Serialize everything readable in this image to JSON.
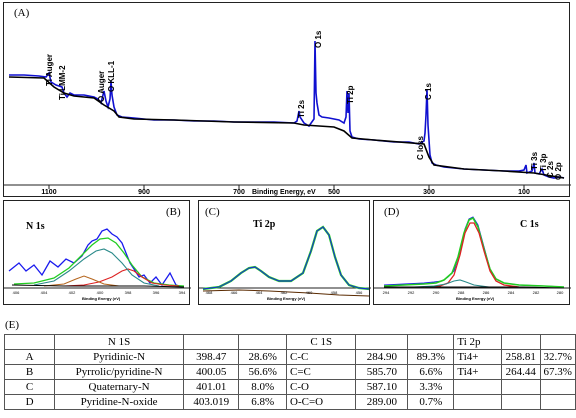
{
  "panels": {
    "a": {
      "label": "(A)",
      "xlabel": "Binding Energy, eV",
      "xticks": [
        "1100",
        "900",
        "700",
        "500",
        "300",
        "100"
      ],
      "peaks": [
        "Ti Auger",
        "Ti LMM-2",
        "O Auger",
        "O KLL-1",
        "Ti 2s",
        "O 1s",
        "Ti 2p",
        "C 1s",
        "C loss",
        "Ti 3s",
        "Ti 3p",
        "C 2s",
        "O 2p"
      ]
    },
    "b": {
      "label": "(B)",
      "title": "N 1s",
      "xlabel": "Binding Energy (eV)",
      "xticks": [
        "406",
        "404",
        "402",
        "400",
        "398",
        "396",
        "394"
      ]
    },
    "c": {
      "label": "(C)",
      "title": "Ti 2p",
      "xlabel": "Binding Energy (eV)",
      "xticks": [
        "468",
        "466",
        "464",
        "462",
        "460",
        "458",
        "456"
      ]
    },
    "d": {
      "label": "(D)",
      "title": "C 1s",
      "xlabel": "Binding Energy (eV)",
      "xticks": [
        "294",
        "292",
        "290",
        "288",
        "286",
        "284",
        "282",
        "280"
      ]
    },
    "e": {
      "label": "(E)"
    }
  },
  "table": {
    "header": [
      "",
      "N 1S",
      "",
      "",
      "C 1S",
      "",
      "",
      "Ti 2p",
      "",
      ""
    ],
    "rows": [
      [
        "A",
        "Pyridinic-N",
        "398.47",
        "28.6%",
        "C-C",
        "284.90",
        "89.3%",
        "Ti4+",
        "258.81",
        "32.7%"
      ],
      [
        "B",
        "Pyrrolic/pyridine-N",
        "400.05",
        "56.6%",
        "C=C",
        "585.70",
        "6.6%",
        "Ti4+",
        "264.44",
        "67.3%"
      ],
      [
        "C",
        "Quaternary-N",
        "401.01",
        "8.0%",
        "C-O",
        "587.10",
        "3.3%",
        "",
        "",
        ""
      ],
      [
        "D",
        "Pyridine-N-oxide",
        "403.019",
        "6.8%",
        "O-C=O",
        "289.00",
        "0.7%",
        "",
        "",
        ""
      ]
    ]
  },
  "colors": {
    "survey": "#1010d0",
    "background": "#000000",
    "fit_green": "#22cc22",
    "fit_red": "#dd2222",
    "fit_teal": "#2a8a8a"
  }
}
